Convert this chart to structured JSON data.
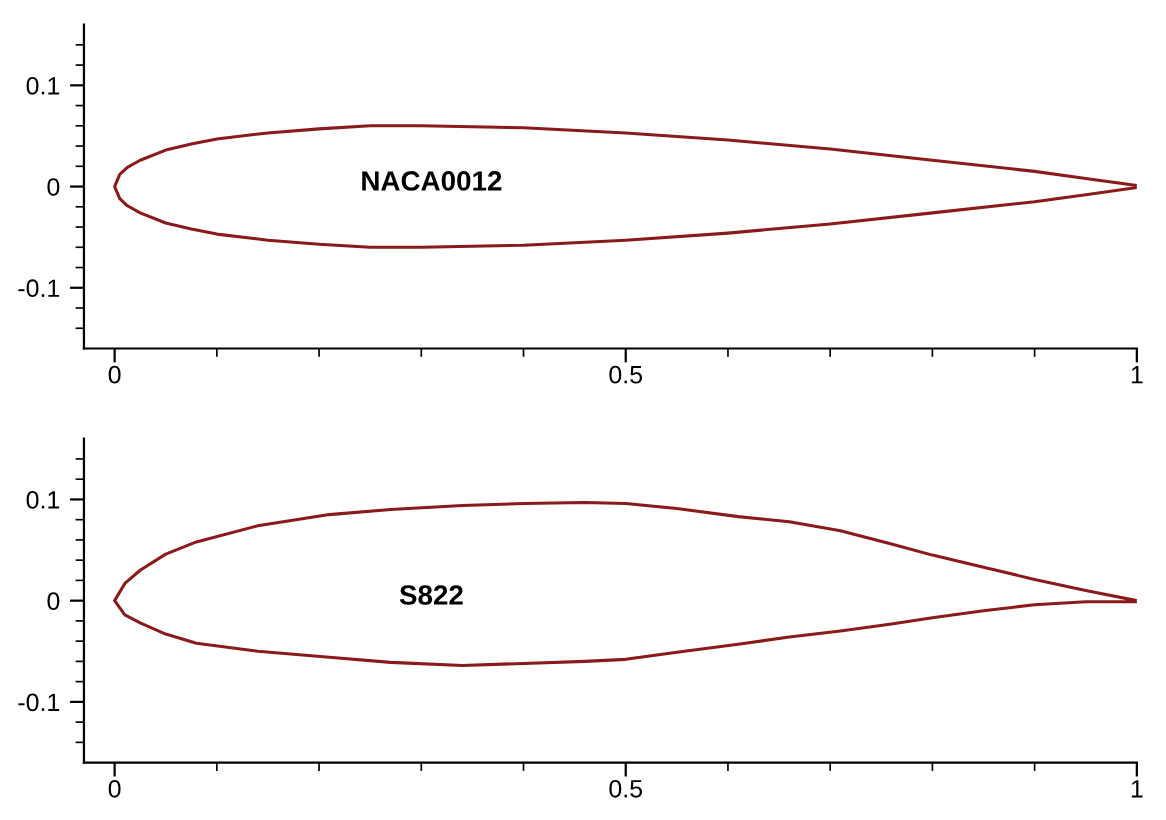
{
  "chart_data": [
    {
      "type": "line",
      "xlim": [
        -0.03,
        1
      ],
      "ylim": [
        -0.16,
        0.16
      ],
      "xticks": [
        0,
        {
          "value": 0.1,
          "label": null
        },
        {
          "value": 0.2,
          "label": null
        },
        {
          "value": 0.3,
          "label": null
        },
        {
          "value": 0.4,
          "label": null
        },
        0.5,
        {
          "value": 0.6,
          "label": null
        },
        {
          "value": 0.7,
          "label": null
        },
        {
          "value": 0.8,
          "label": null
        },
        {
          "value": 0.9,
          "label": null
        },
        1
      ],
      "yticks": [
        {
          "value": -0.14,
          "label": null
        },
        {
          "value": -0.12,
          "label": null
        },
        -0.1,
        {
          "value": -0.08,
          "label": null
        },
        {
          "value": -0.06,
          "label": null
        },
        {
          "value": -0.04,
          "label": null
        },
        {
          "value": -0.02,
          "label": null
        },
        0,
        {
          "value": 0.02,
          "label": null
        },
        {
          "value": 0.04,
          "label": null
        },
        {
          "value": 0.06,
          "label": null
        },
        {
          "value": 0.08,
          "label": null
        },
        0.1,
        {
          "value": 0.12,
          "label": null
        },
        {
          "value": 0.14,
          "label": null
        }
      ],
      "grid": false,
      "legend": false,
      "annotations": [
        "NACA0012"
      ],
      "series": [
        {
          "color": "#8b1a1a",
          "x": [
            1,
            0.95,
            0.9,
            0.8,
            0.7,
            0.6,
            0.5,
            0.4,
            0.3,
            0.25,
            0.2,
            0.15,
            0.1,
            0.075,
            0.05,
            0.025,
            0.0125,
            0.005,
            0,
            0.005,
            0.0125,
            0.025,
            0.05,
            0.075,
            0.1,
            0.15,
            0.2,
            0.25,
            0.3,
            0.4,
            0.5,
            0.6,
            0.7,
            0.8,
            0.9,
            0.95,
            1
          ],
          "values": [
            0.001,
            0.008,
            0.015,
            0.026,
            0.037,
            0.046,
            0.053,
            0.058,
            0.06,
            0.06,
            0.057,
            0.053,
            0.047,
            0.042,
            0.036,
            0.026,
            0.019,
            0.012,
            0,
            -0.012,
            -0.019,
            -0.026,
            -0.036,
            -0.042,
            -0.047,
            -0.053,
            -0.057,
            -0.06,
            -0.06,
            -0.058,
            -0.053,
            -0.046,
            -0.037,
            -0.026,
            -0.015,
            -0.008,
            -0.001
          ]
        }
      ]
    },
    {
      "type": "line",
      "xlim": [
        -0.03,
        1
      ],
      "ylim": [
        -0.16,
        0.16
      ],
      "xticks": [
        0,
        {
          "value": 0.1,
          "label": null
        },
        {
          "value": 0.2,
          "label": null
        },
        {
          "value": 0.3,
          "label": null
        },
        {
          "value": 0.4,
          "label": null
        },
        0.5,
        {
          "value": 0.6,
          "label": null
        },
        {
          "value": 0.7,
          "label": null
        },
        {
          "value": 0.8,
          "label": null
        },
        {
          "value": 0.9,
          "label": null
        },
        1
      ],
      "yticks": [
        {
          "value": -0.14,
          "label": null
        },
        {
          "value": -0.12,
          "label": null
        },
        -0.1,
        {
          "value": -0.08,
          "label": null
        },
        {
          "value": -0.06,
          "label": null
        },
        {
          "value": -0.04,
          "label": null
        },
        {
          "value": -0.02,
          "label": null
        },
        0,
        {
          "value": 0.02,
          "label": null
        },
        {
          "value": 0.04,
          "label": null
        },
        {
          "value": 0.06,
          "label": null
        },
        {
          "value": 0.08,
          "label": null
        },
        0.1,
        {
          "value": 0.12,
          "label": null
        },
        {
          "value": 0.14,
          "label": null
        }
      ],
      "grid": false,
      "legend": false,
      "annotations": [
        "S822"
      ],
      "series": [
        {
          "color": "#8b1a1a",
          "x": [
            1,
            0.95,
            0.9,
            0.85,
            0.8,
            0.76,
            0.71,
            0.66,
            0.61,
            0.55,
            0.5,
            0.46,
            0.4,
            0.34,
            0.27,
            0.21,
            0.14,
            0.08,
            0.05,
            0.025,
            0.01,
            0,
            0.01,
            0.025,
            0.05,
            0.08,
            0.14,
            0.21,
            0.27,
            0.34,
            0.4,
            0.46,
            0.5,
            0.55,
            0.61,
            0.66,
            0.71,
            0.76,
            0.8,
            0.85,
            0.9,
            0.95,
            1
          ],
          "values": [
            0,
            0.01,
            0.021,
            0.033,
            0.045,
            0.056,
            0.069,
            0.078,
            0.083,
            0.091,
            0.096,
            0.097,
            0.096,
            0.094,
            0.09,
            0.085,
            0.074,
            0.058,
            0.046,
            0.03,
            0.017,
            0,
            -0.014,
            -0.022,
            -0.033,
            -0.042,
            -0.05,
            -0.056,
            -0.061,
            -0.064,
            -0.062,
            -0.06,
            -0.058,
            -0.051,
            -0.043,
            -0.036,
            -0.03,
            -0.023,
            -0.017,
            -0.01,
            -0.004,
            -0.001,
            -0.001
          ]
        }
      ]
    }
  ]
}
